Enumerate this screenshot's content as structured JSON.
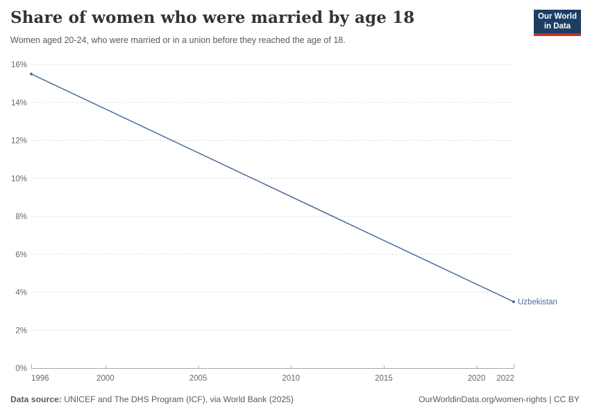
{
  "logo": {
    "line1": "Our World",
    "line2": "in Data",
    "bg": "#1d3d63",
    "accent": "#cf2d24"
  },
  "chart_data": {
    "type": "line",
    "title": "Share of women who were married by age 18",
    "subtitle": "Women aged 20-24, who were married or in a union before they reached the age of 18.",
    "xlabel": "",
    "ylabel": "",
    "xlim": [
      1996,
      2022
    ],
    "ylim": [
      0,
      16
    ],
    "x_ticks": [
      1996,
      2000,
      2005,
      2010,
      2015,
      2020,
      2022
    ],
    "y_ticks": [
      0,
      2,
      4,
      6,
      8,
      10,
      12,
      14,
      16
    ],
    "y_tick_format": "%",
    "grid": "horizontal-dashed",
    "legend": "entity-label-right",
    "series": [
      {
        "name": "Uzbekistan",
        "color": "#4C6A9C",
        "x": [
          1996,
          2022
        ],
        "values": [
          15.5,
          3.5
        ]
      }
    ],
    "colors": {
      "grid": "#dedede",
      "axis": "#a6a6a6",
      "tick_label": "#666666"
    }
  },
  "footer": {
    "source_label": "Data source:",
    "source_text": " UNICEF and The DHS Program (ICF), via World Bank (2025)",
    "link_text": "OurWorldinData.org/women-rights | CC BY"
  }
}
